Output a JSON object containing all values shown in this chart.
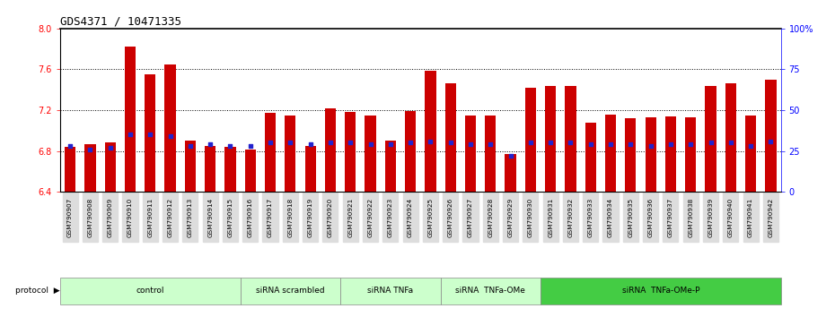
{
  "title": "GDS4371 / 10471335",
  "samples": [
    "GSM790907",
    "GSM790908",
    "GSM790909",
    "GSM790910",
    "GSM790911",
    "GSM790912",
    "GSM790913",
    "GSM790914",
    "GSM790915",
    "GSM790916",
    "GSM790917",
    "GSM790918",
    "GSM790919",
    "GSM790920",
    "GSM790921",
    "GSM790922",
    "GSM790923",
    "GSM790924",
    "GSM790925",
    "GSM790926",
    "GSM790927",
    "GSM790928",
    "GSM790929",
    "GSM790930",
    "GSM790931",
    "GSM790932",
    "GSM790933",
    "GSM790934",
    "GSM790935",
    "GSM790936",
    "GSM790937",
    "GSM790938",
    "GSM790939",
    "GSM790940",
    "GSM790941",
    "GSM790942"
  ],
  "transformed_count": [
    6.84,
    6.87,
    6.88,
    7.82,
    7.55,
    7.65,
    6.9,
    6.85,
    6.84,
    6.81,
    7.17,
    7.15,
    6.85,
    7.22,
    7.18,
    7.15,
    6.9,
    7.19,
    7.59,
    7.46,
    7.15,
    7.15,
    6.77,
    7.42,
    7.44,
    7.44,
    7.08,
    7.16,
    7.12,
    7.13,
    7.14,
    7.13,
    7.44,
    7.46,
    7.15,
    7.5
  ],
  "percentile_rank": [
    28,
    26,
    27,
    35,
    35,
    34,
    28,
    29,
    28,
    28,
    30,
    30,
    29,
    30,
    30,
    29,
    29,
    30,
    31,
    30,
    29,
    29,
    22,
    30,
    30,
    30,
    29,
    29,
    29,
    28,
    29,
    29,
    30,
    30,
    28,
    31
  ],
  "groups": [
    {
      "label": "control",
      "start": 0,
      "end": 9,
      "light": true
    },
    {
      "label": "siRNA scrambled",
      "start": 9,
      "end": 14,
      "light": true
    },
    {
      "label": "siRNA TNFa",
      "start": 14,
      "end": 19,
      "light": true
    },
    {
      "label": "siRNA  TNFa-OMe",
      "start": 19,
      "end": 24,
      "light": true
    },
    {
      "label": "siRNA  TNFa-OMe-P",
      "start": 24,
      "end": 36,
      "light": false
    }
  ],
  "ylim": [
    6.4,
    8.0
  ],
  "yticks": [
    6.4,
    6.8,
    7.2,
    7.6,
    8.0
  ],
  "right_ylim": [
    0,
    100
  ],
  "right_yticks": [
    0,
    25,
    50,
    75,
    100
  ],
  "bar_color": "#cc0000",
  "dot_color": "#2222cc",
  "bar_width": 0.55,
  "title_fontsize": 9,
  "tick_fontsize": 7,
  "sample_fontsize": 5.2,
  "group_light_color": "#ccffcc",
  "group_dark_color": "#44cc44",
  "xtick_bg_color": "#dddddd"
}
